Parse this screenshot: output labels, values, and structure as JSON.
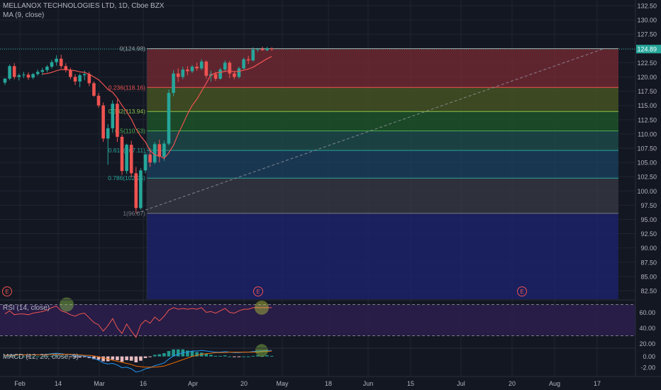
{
  "header": {
    "title": "MELLANOX TECHNOLOGIES LTD, 1D, Cboe BZX",
    "ma_label": "MA (9, close)",
    "rsi_label": "RSI (14, close)",
    "macd_label": "MACD (12, 26, close, 9)"
  },
  "colors": {
    "background": "#131722",
    "up": "#26a69a",
    "down": "#ef5350",
    "ma": "#ef5350",
    "grid": "#1f2430",
    "axis_text": "#b2b5be",
    "price_badge": "#26a69a",
    "rsi_band": "#2a1e4a",
    "macd_line": "#2196f3",
    "signal_line": "#ef6c00"
  },
  "price_axis": {
    "ticks": [
      "132.50",
      "130.00",
      "127.50",
      "125.00",
      "122.50",
      "120.00",
      "117.50",
      "115.00",
      "112.50",
      "110.00",
      "107.50",
      "105.00",
      "102.50",
      "100.00",
      "97.50",
      "95.00",
      "92.50",
      "90.00",
      "87.50",
      "85.00",
      "82.50"
    ],
    "last_price": "124.89"
  },
  "rsi_axis": {
    "ticks": [
      "60.00",
      "40.00",
      "20.00"
    ]
  },
  "macd_axis": {
    "ticks": [
      "0.00",
      "-2.00"
    ]
  },
  "time_axis": {
    "ticks": [
      "Feb",
      "14",
      "Mar",
      "16",
      "Apr",
      "20",
      "May",
      "18",
      "Jun",
      "15",
      "Jul",
      "20",
      "Aug",
      "17"
    ]
  },
  "earnings_markers": [
    "E",
    "E",
    "E"
  ],
  "chart_data": [
    {
      "type": "candlestick",
      "title": "MELLANOX TECHNOLOGIES LTD, 1D, Cboe BZX",
      "ylim": [
        81,
        133.5
      ],
      "series": [
        {
          "name": "MELLANOX TECHNOLOGIES LTD",
          "ohlc": [
            [
              119.0,
              119.8,
              118.6,
              119.7
            ],
            [
              119.7,
              122.2,
              119.4,
              121.9
            ],
            [
              121.9,
              122.4,
              119.6,
              120.0
            ],
            [
              120.0,
              120.6,
              119.4,
              120.3
            ],
            [
              120.3,
              120.9,
              119.8,
              120.4
            ],
            [
              120.4,
              120.8,
              119.5,
              119.9
            ],
            [
              119.9,
              120.7,
              119.6,
              120.5
            ],
            [
              120.5,
              121.3,
              120.2,
              120.9
            ],
            [
              120.9,
              121.6,
              120.3,
              121.2
            ],
            [
              121.2,
              122.1,
              120.8,
              121.8
            ],
            [
              121.8,
              123.0,
              121.5,
              122.6
            ],
            [
              122.6,
              123.8,
              122.0,
              123.2
            ],
            [
              123.2,
              123.9,
              121.5,
              121.9
            ],
            [
              121.9,
              122.4,
              120.8,
              121.2
            ],
            [
              121.2,
              121.6,
              119.6,
              120.0
            ],
            [
              120.0,
              120.5,
              118.6,
              119.2
            ],
            [
              119.2,
              120.6,
              118.2,
              120.3
            ],
            [
              120.3,
              121.1,
              119.4,
              120.5
            ],
            [
              120.5,
              120.9,
              118.4,
              118.9
            ],
            [
              118.9,
              119.2,
              116.5,
              116.7
            ],
            [
              116.7,
              117.2,
              114.6,
              115.0
            ],
            [
              115.0,
              115.5,
              108.6,
              109.2
            ],
            [
              109.2,
              111.7,
              104.6,
              111.0
            ],
            [
              111.0,
              115.9,
              110.2,
              115.3
            ],
            [
              115.3,
              116.1,
              108.6,
              109.5
            ],
            [
              109.5,
              109.9,
              102.8,
              103.5
            ],
            [
              103.5,
              108.3,
              103.0,
              108.1
            ],
            [
              108.1,
              108.8,
              102.4,
              103.1
            ],
            [
              103.1,
              104.2,
              96.1,
              97.0
            ],
            [
              97.0,
              104.0,
              96.7,
              103.6
            ],
            [
              103.6,
              106.8,
              103.1,
              106.4
            ],
            [
              106.4,
              107.5,
              104.2,
              105.0
            ],
            [
              105.0,
              108.6,
              104.7,
              108.2
            ],
            [
              108.2,
              109.0,
              105.0,
              106.0
            ],
            [
              106.0,
              108.8,
              105.3,
              108.3
            ],
            [
              108.3,
              117.8,
              108.0,
              117.2
            ],
            [
              117.2,
              121.2,
              116.6,
              120.6
            ],
            [
              120.6,
              121.5,
              119.1,
              120.0
            ],
            [
              120.0,
              121.8,
              119.6,
              121.3
            ],
            [
              121.3,
              121.9,
              120.3,
              121.0
            ],
            [
              121.0,
              122.1,
              120.7,
              121.8
            ],
            [
              121.8,
              122.5,
              121.1,
              121.5
            ],
            [
              121.5,
              123.1,
              121.2,
              122.7
            ],
            [
              122.7,
              122.9,
              119.7,
              120.2
            ],
            [
              120.2,
              121.1,
              119.2,
              120.5
            ],
            [
              120.5,
              120.9,
              119.3,
              119.7
            ],
            [
              119.7,
              121.6,
              119.5,
              121.3
            ],
            [
              121.3,
              122.9,
              120.9,
              122.5
            ],
            [
              122.5,
              122.8,
              119.8,
              120.6
            ],
            [
              120.6,
              121.1,
              119.6,
              120.0
            ],
            [
              120.0,
              121.8,
              119.7,
              121.5
            ],
            [
              121.5,
              123.4,
              121.3,
              123.1
            ],
            [
              123.1,
              123.7,
              122.3,
              122.9
            ],
            [
              122.9,
              125.2,
              122.7,
              124.8
            ],
            [
              124.8,
              125.1,
              124.4,
              124.9
            ],
            [
              124.9,
              125.3,
              124.6,
              124.7
            ],
            [
              124.7,
              125.3,
              124.5,
              125.0
            ],
            [
              125.0,
              125.2,
              124.6,
              124.89
            ]
          ]
        },
        {
          "name": "MA (9, close)",
          "values": [
            null,
            null,
            null,
            null,
            null,
            null,
            null,
            null,
            120.5,
            120.6,
            120.8,
            121.1,
            121.3,
            121.3,
            121.2,
            121.1,
            120.9,
            120.8,
            120.5,
            120.0,
            119.5,
            118.7,
            117.8,
            117.3,
            116.3,
            115.0,
            113.9,
            112.6,
            110.9,
            109.6,
            108.6,
            107.1,
            106.3,
            106.2,
            105.7,
            106.7,
            108.0,
            110.0,
            111.7,
            113.5,
            115.0,
            116.1,
            117.5,
            118.9,
            120.4,
            120.7,
            120.8,
            121.0,
            121.1,
            120.9,
            121.0,
            121.2,
            121.4,
            121.7,
            122.2,
            122.7,
            123.2,
            123.6
          ]
        }
      ],
      "fibonacci": {
        "levels": [
          {
            "ratio": "0",
            "price": 124.98,
            "label": "0(124.98)"
          },
          {
            "ratio": "0.236",
            "price": 118.16,
            "label": "0.236(118.16)"
          },
          {
            "ratio": "0.382",
            "price": 113.94,
            "label": "0.382(113.94)"
          },
          {
            "ratio": "0.5",
            "price": 110.53,
            "label": "0.5(110.53)"
          },
          {
            "ratio": "0.618",
            "price": 107.11,
            "label": "0.618(107.11)"
          },
          {
            "ratio": "0.786",
            "price": 102.25,
            "label": "0.786(102.25)"
          },
          {
            "ratio": "1",
            "price": 96.07,
            "label": "1(96.07)"
          }
        ]
      },
      "trend_line": {
        "from": {
          "x": 28,
          "y": 96.07
        },
        "to": {
          "x": 128,
          "y": 124.98
        }
      }
    },
    {
      "type": "line",
      "title": "RSI (14, close)",
      "ylim": [
        15,
        75
      ],
      "bands": [
        70,
        30
      ],
      "series": [
        {
          "name": "RSI",
          "values": [
            58,
            62,
            57,
            58,
            58,
            57,
            59,
            60,
            61,
            63,
            66,
            68,
            62,
            60,
            57,
            55,
            58,
            59,
            53,
            47,
            44,
            36,
            43,
            52,
            40,
            33,
            45,
            36,
            28,
            44,
            50,
            46,
            54,
            49,
            55,
            63,
            66,
            64,
            65,
            64,
            65,
            64,
            66,
            60,
            61,
            59,
            62,
            65,
            60,
            59,
            62,
            64,
            64,
            66,
            66,
            66,
            66,
            66
          ]
        }
      ]
    },
    {
      "type": "bar",
      "title": "MACD (12, 26, close, 9)",
      "ylim": [
        -3.6,
        1.4
      ],
      "series": [
        {
          "name": "MACD",
          "values": [
            0.2,
            0.3,
            0.3,
            0.3,
            0.3,
            0.2,
            0.3,
            0.3,
            0.3,
            0.4,
            0.5,
            0.6,
            0.5,
            0.4,
            0.3,
            0.1,
            0.1,
            0.1,
            -0.1,
            -0.4,
            -0.7,
            -1.2,
            -1.4,
            -1.3,
            -1.6,
            -2.1,
            -2.0,
            -2.3,
            -2.9,
            -2.7,
            -2.3,
            -2.1,
            -1.7,
            -1.5,
            -1.2,
            -0.5,
            0.1,
            0.4,
            0.7,
            0.8,
            1.0,
            1.0,
            1.1,
            1.0,
            0.9,
            0.8,
            0.8,
            0.9,
            0.8,
            0.7,
            0.7,
            0.8,
            0.8,
            0.9,
            1.0,
            1.0,
            1.1,
            1.1
          ]
        },
        {
          "name": "Signal",
          "values": [
            0.2,
            0.2,
            0.2,
            0.3,
            0.3,
            0.3,
            0.3,
            0.3,
            0.3,
            0.3,
            0.4,
            0.4,
            0.4,
            0.4,
            0.4,
            0.3,
            0.3,
            0.2,
            0.2,
            0.1,
            -0.1,
            -0.3,
            -0.5,
            -0.7,
            -0.9,
            -1.1,
            -1.3,
            -1.5,
            -1.8,
            -1.9,
            -2.0,
            -2.0,
            -2.0,
            -1.9,
            -1.8,
            -1.5,
            -1.2,
            -0.9,
            -0.6,
            -0.3,
            0.0,
            0.2,
            0.4,
            0.5,
            0.6,
            0.7,
            0.7,
            0.7,
            0.8,
            0.8,
            0.8,
            0.8,
            0.8,
            0.8,
            0.8,
            0.9,
            0.9,
            1.0
          ]
        },
        {
          "name": "Histogram",
          "values": [
            0.0,
            0.1,
            0.1,
            0.0,
            0.0,
            -0.1,
            0.0,
            0.0,
            0.0,
            0.1,
            0.1,
            0.2,
            0.1,
            0.0,
            -0.1,
            -0.2,
            -0.2,
            -0.1,
            -0.3,
            -0.5,
            -0.6,
            -0.9,
            -0.9,
            -0.6,
            -0.7,
            -1.0,
            -0.7,
            -0.8,
            -1.1,
            -0.8,
            -0.3,
            -0.1,
            0.3,
            0.4,
            0.6,
            1.0,
            1.3,
            1.3,
            1.3,
            1.1,
            1.0,
            0.8,
            0.7,
            0.5,
            0.3,
            0.1,
            0.1,
            0.2,
            0.0,
            -0.1,
            -0.1,
            0.0,
            0.0,
            0.1,
            0.2,
            0.1,
            0.2,
            0.1
          ]
        }
      ]
    }
  ]
}
